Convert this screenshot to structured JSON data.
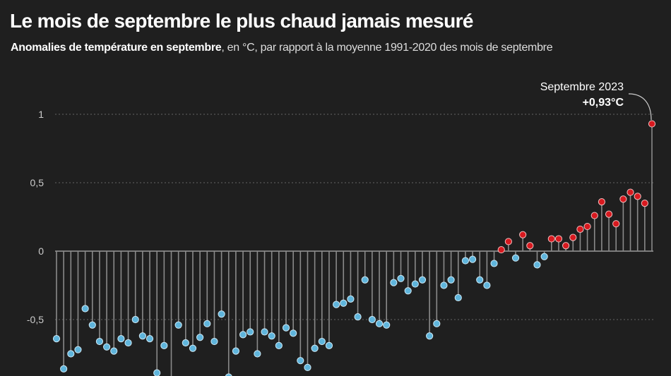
{
  "chart_data": {
    "type": "lollipop",
    "title": "Le mois de septembre le plus chaud jamais mesuré",
    "subtitle_bold": "Anomalies de température en septembre",
    "subtitle_rest": ", en °C, par rapport à la moyenne 1991-2020 des mois de septembre",
    "ylim": [
      -0.95,
      1.0
    ],
    "yticks": [
      {
        "v": 1,
        "label": "1"
      },
      {
        "v": 0.5,
        "label": "0,5"
      },
      {
        "v": 0,
        "label": "0"
      },
      {
        "v": -0.5,
        "label": "-0,5"
      }
    ],
    "grid": true,
    "colors": {
      "negative": "#5fb5dc",
      "positive": "#d7191f",
      "stem": "#8a8a8a",
      "background": "#1f1f1f"
    },
    "values": [
      -0.64,
      -0.86,
      -0.75,
      -0.72,
      -0.42,
      -0.54,
      -0.66,
      -0.7,
      -0.73,
      -0.64,
      -0.67,
      -0.5,
      -0.62,
      -0.64,
      -0.89,
      -0.69,
      -0.95,
      -0.54,
      -0.67,
      -0.71,
      -0.63,
      -0.53,
      -0.66,
      -0.46,
      -0.92,
      -0.73,
      -0.61,
      -0.59,
      -0.75,
      -0.59,
      -0.62,
      -0.69,
      -0.56,
      -0.6,
      -0.8,
      -0.85,
      -0.71,
      -0.66,
      -0.69,
      -0.39,
      -0.38,
      -0.35,
      -0.48,
      -0.21,
      -0.5,
      -0.53,
      -0.54,
      -0.23,
      -0.2,
      -0.29,
      -0.24,
      -0.21,
      -0.62,
      -0.53,
      -0.25,
      -0.21,
      -0.34,
      -0.07,
      -0.06,
      -0.21,
      -0.25,
      -0.09,
      0.01,
      0.07,
      -0.05,
      0.12,
      0.04,
      -0.1,
      -0.04,
      0.09,
      0.09,
      0.04,
      0.1,
      0.16,
      0.18,
      0.26,
      0.36,
      0.27,
      0.2,
      0.38,
      0.43,
      0.4,
      0.35,
      0.93
    ],
    "annotation": {
      "label": "Septembre 2023",
      "value": "+0,93°C"
    }
  }
}
